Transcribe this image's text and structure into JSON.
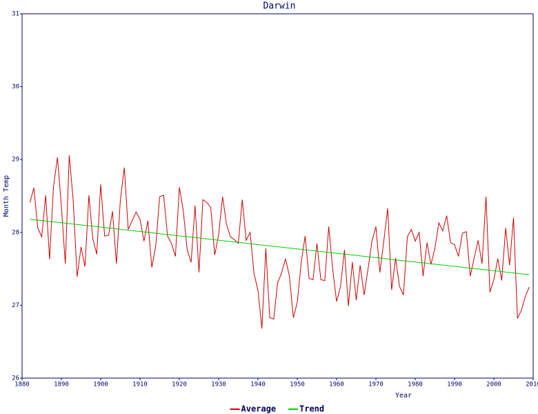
{
  "chart_data": {
    "type": "line",
    "title": "Darwin",
    "x_label": "Year",
    "y_label": "Month Temp",
    "xlim": [
      1880,
      2010
    ],
    "xticks": [
      1880,
      1890,
      1900,
      1910,
      1920,
      1930,
      1940,
      1950,
      1960,
      1970,
      1980,
      1990,
      2000,
      2010
    ],
    "ylim": [
      26,
      31
    ],
    "yticks": [
      26,
      27,
      28,
      29,
      30,
      31
    ],
    "grid": false,
    "legend": "bottom",
    "series": [
      {
        "name": "Average",
        "color": "#cc0000",
        "x": [
          1882,
          1883,
          1884,
          1885,
          1886,
          1887,
          1888,
          1889,
          1890,
          1891,
          1892,
          1893,
          1894,
          1895,
          1896,
          1897,
          1898,
          1899,
          1900,
          1901,
          1902,
          1903,
          1904,
          1905,
          1906,
          1907,
          1908,
          1909,
          1910,
          1911,
          1912,
          1913,
          1914,
          1915,
          1916,
          1917,
          1918,
          1919,
          1920,
          1921,
          1922,
          1923,
          1924,
          1925,
          1926,
          1927,
          1928,
          1929,
          1930,
          1931,
          1932,
          1933,
          1934,
          1935,
          1936,
          1937,
          1938,
          1939,
          1940,
          1941,
          1942,
          1943,
          1944,
          1945,
          1946,
          1947,
          1948,
          1949,
          1950,
          1951,
          1952,
          1953,
          1954,
          1955,
          1956,
          1957,
          1958,
          1959,
          1960,
          1961,
          1962,
          1963,
          1964,
          1965,
          1966,
          1967,
          1968,
          1969,
          1970,
          1971,
          1972,
          1973,
          1974,
          1975,
          1976,
          1977,
          1978,
          1979,
          1980,
          1981,
          1982,
          1983,
          1984,
          1985,
          1986,
          1987,
          1988,
          1989,
          1990,
          1991,
          1992,
          1993,
          1994,
          1995,
          1996,
          1997,
          1998,
          1999,
          2000,
          2001,
          2002,
          2003,
          2004,
          2005,
          2006,
          2007,
          2008,
          2009
        ],
        "values": [
          28.41,
          28.61,
          28.06,
          27.94,
          28.51,
          27.63,
          28.63,
          29.03,
          28.35,
          27.57,
          29.06,
          28.44,
          27.39,
          27.8,
          27.53,
          28.51,
          27.91,
          27.7,
          28.66,
          27.95,
          27.96,
          28.29,
          27.57,
          28.44,
          28.89,
          28.04,
          28.16,
          28.28,
          28.18,
          27.88,
          28.16,
          27.52,
          27.81,
          28.49,
          28.51,
          27.95,
          27.85,
          27.67,
          28.62,
          28.3,
          27.76,
          27.59,
          28.37,
          27.45,
          28.45,
          28.41,
          28.34,
          27.69,
          27.97,
          28.49,
          28.11,
          27.94,
          27.9,
          27.85,
          28.45,
          27.89,
          28.0,
          27.43,
          27.21,
          26.68,
          27.78,
          26.83,
          26.81,
          27.31,
          27.44,
          27.64,
          27.4,
          26.83,
          27.04,
          27.59,
          27.95,
          27.37,
          27.35,
          27.85,
          27.35,
          27.34,
          28.08,
          27.5,
          27.05,
          27.26,
          27.76,
          26.99,
          27.59,
          27.07,
          27.55,
          27.14,
          27.5,
          27.88,
          28.08,
          27.45,
          27.88,
          28.33,
          27.21,
          27.65,
          27.26,
          27.14,
          27.94,
          28.04,
          27.88,
          28.0,
          27.4,
          27.86,
          27.56,
          27.78,
          28.13,
          28.02,
          28.23,
          27.86,
          27.83,
          27.67,
          27.99,
          28.01,
          27.4,
          27.65,
          27.89,
          27.57,
          28.49,
          27.18,
          27.35,
          27.64,
          27.34,
          28.06,
          27.55,
          28.2,
          26.82,
          26.93,
          27.12,
          27.25
        ]
      },
      {
        "name": "Trend",
        "color": "#00cc00",
        "x": [
          1882,
          2009
        ],
        "values": [
          28.18,
          27.42
        ]
      }
    ]
  }
}
